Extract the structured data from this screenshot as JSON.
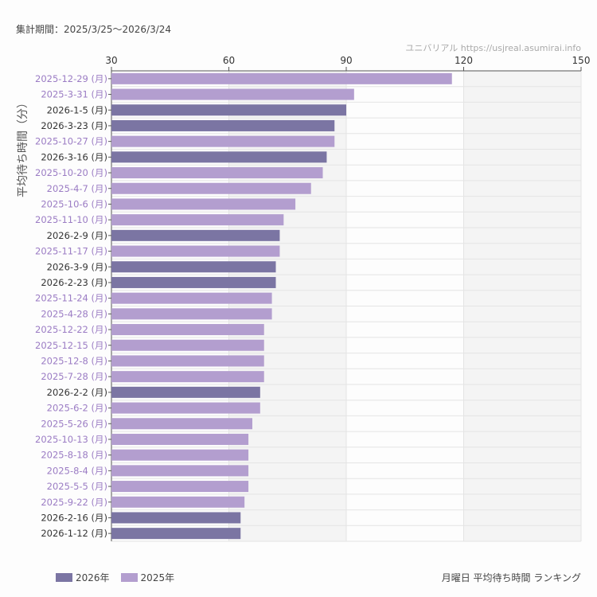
{
  "header": {
    "period": "集計期間：2025/3/25〜2026/3/24",
    "credit": "ユニバリアル https://usjreal.asumirai.info"
  },
  "footer": {
    "title": "月曜日 平均待ち時間 ランキング"
  },
  "colors": {
    "2026": "#7b75a3",
    "2025": "#b39ecf",
    "label_2025": "#9b7cc4",
    "label_2026": "#333333"
  },
  "chart_data": {
    "type": "bar",
    "orientation": "horizontal",
    "title": "月曜日 平均待ち時間 ランキング",
    "xlabel": "",
    "ylabel": "平均待ち時間（分）",
    "xlim": [
      30,
      150
    ],
    "xticks": [
      30,
      60,
      90,
      120,
      150
    ],
    "grid": true,
    "legend_position": "bottom-left",
    "legend": [
      {
        "key": "2026",
        "label": "2026年"
      },
      {
        "key": "2025",
        "label": "2025年"
      }
    ],
    "bars": [
      {
        "label": "2025-12-29 (月)",
        "series": "2025",
        "value": 117
      },
      {
        "label": "2025-3-31 (月)",
        "series": "2025",
        "value": 92
      },
      {
        "label": "2026-1-5 (月)",
        "series": "2026",
        "value": 90
      },
      {
        "label": "2026-3-23 (月)",
        "series": "2026",
        "value": 87
      },
      {
        "label": "2025-10-27 (月)",
        "series": "2025",
        "value": 87
      },
      {
        "label": "2026-3-16 (月)",
        "series": "2026",
        "value": 85
      },
      {
        "label": "2025-10-20 (月)",
        "series": "2025",
        "value": 84
      },
      {
        "label": "2025-4-7 (月)",
        "series": "2025",
        "value": 81
      },
      {
        "label": "2025-10-6 (月)",
        "series": "2025",
        "value": 77
      },
      {
        "label": "2025-11-10 (月)",
        "series": "2025",
        "value": 74
      },
      {
        "label": "2026-2-9 (月)",
        "series": "2026",
        "value": 73
      },
      {
        "label": "2025-11-17 (月)",
        "series": "2025",
        "value": 73
      },
      {
        "label": "2026-3-9 (月)",
        "series": "2026",
        "value": 72
      },
      {
        "label": "2026-2-23 (月)",
        "series": "2026",
        "value": 72
      },
      {
        "label": "2025-11-24 (月)",
        "series": "2025",
        "value": 71
      },
      {
        "label": "2025-4-28 (月)",
        "series": "2025",
        "value": 71
      },
      {
        "label": "2025-12-22 (月)",
        "series": "2025",
        "value": 69
      },
      {
        "label": "2025-12-15 (月)",
        "series": "2025",
        "value": 69
      },
      {
        "label": "2025-12-8 (月)",
        "series": "2025",
        "value": 69
      },
      {
        "label": "2025-7-28 (月)",
        "series": "2025",
        "value": 69
      },
      {
        "label": "2026-2-2 (月)",
        "series": "2026",
        "value": 68
      },
      {
        "label": "2025-6-2 (月)",
        "series": "2025",
        "value": 68
      },
      {
        "label": "2025-5-26 (月)",
        "series": "2025",
        "value": 66
      },
      {
        "label": "2025-10-13 (月)",
        "series": "2025",
        "value": 65
      },
      {
        "label": "2025-8-18 (月)",
        "series": "2025",
        "value": 65
      },
      {
        "label": "2025-8-4 (月)",
        "series": "2025",
        "value": 65
      },
      {
        "label": "2025-5-5 (月)",
        "series": "2025",
        "value": 65
      },
      {
        "label": "2025-9-22 (月)",
        "series": "2025",
        "value": 64
      },
      {
        "label": "2026-2-16 (月)",
        "series": "2026",
        "value": 63
      },
      {
        "label": "2026-1-12 (月)",
        "series": "2026",
        "value": 63
      }
    ]
  }
}
